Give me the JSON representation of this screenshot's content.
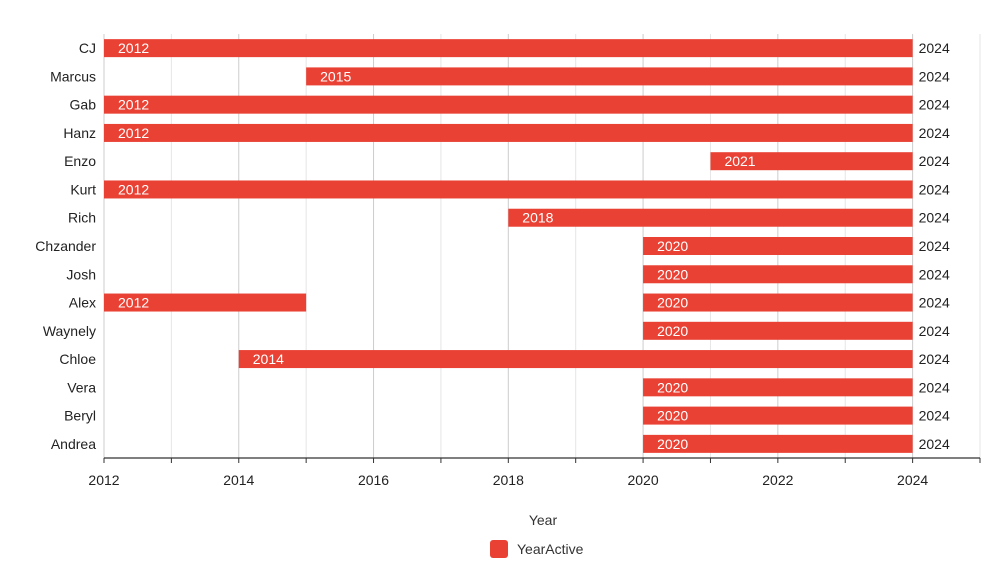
{
  "chart_data": {
    "type": "bar",
    "orientation": "horizontal-range",
    "title": "",
    "xlabel": "Year",
    "ylabel": "",
    "xlim": [
      2012,
      2025
    ],
    "x_ticks": [
      "2012",
      "2014",
      "2016",
      "2018",
      "2020",
      "2022",
      "2024"
    ],
    "grid": true,
    "legend": {
      "position": "bottom",
      "entries": [
        "YearActive"
      ]
    },
    "colors": {
      "bar": "#e94235",
      "axis": "#333333",
      "grid": "#e6e6e6",
      "grid_major": "#cccccc"
    },
    "series": [
      {
        "name": "YearActive",
        "rows": [
          {
            "category": "CJ",
            "segments": [
              {
                "start": 2012,
                "end": 2024,
                "start_label": "2012",
                "end_label": "2024"
              }
            ]
          },
          {
            "category": "Marcus",
            "segments": [
              {
                "start": 2015,
                "end": 2024,
                "start_label": "2015",
                "end_label": "2024"
              }
            ]
          },
          {
            "category": "Gab",
            "segments": [
              {
                "start": 2012,
                "end": 2024,
                "start_label": "2012",
                "end_label": "2024"
              }
            ]
          },
          {
            "category": "Hanz",
            "segments": [
              {
                "start": 2012,
                "end": 2024,
                "start_label": "2012",
                "end_label": "2024"
              }
            ]
          },
          {
            "category": "Enzo",
            "segments": [
              {
                "start": 2021,
                "end": 2024,
                "start_label": "2021",
                "end_label": "2024"
              }
            ]
          },
          {
            "category": "Kurt",
            "segments": [
              {
                "start": 2012,
                "end": 2024,
                "start_label": "2012",
                "end_label": "2024"
              }
            ]
          },
          {
            "category": "Rich",
            "segments": [
              {
                "start": 2018,
                "end": 2024,
                "start_label": "2018",
                "end_label": "2024"
              }
            ]
          },
          {
            "category": "Chzander",
            "segments": [
              {
                "start": 2020,
                "end": 2024,
                "start_label": "2020",
                "end_label": "2024"
              }
            ]
          },
          {
            "category": "Josh",
            "segments": [
              {
                "start": 2020,
                "end": 2024,
                "start_label": "2020",
                "end_label": "2024"
              }
            ]
          },
          {
            "category": "Alex",
            "segments": [
              {
                "start": 2012,
                "end": 2015,
                "start_label": "2012",
                "end_label": ""
              },
              {
                "start": 2020,
                "end": 2024,
                "start_label": "2020",
                "end_label": "2024"
              }
            ]
          },
          {
            "category": "Waynely",
            "segments": [
              {
                "start": 2020,
                "end": 2024,
                "start_label": "2020",
                "end_label": "2024"
              }
            ]
          },
          {
            "category": "Chloe",
            "segments": [
              {
                "start": 2014,
                "end": 2024,
                "start_label": "2014",
                "end_label": "2024"
              }
            ]
          },
          {
            "category": "Vera",
            "segments": [
              {
                "start": 2020,
                "end": 2024,
                "start_label": "2020",
                "end_label": "2024"
              }
            ]
          },
          {
            "category": "Beryl",
            "segments": [
              {
                "start": 2020,
                "end": 2024,
                "start_label": "2020",
                "end_label": "2024"
              }
            ]
          },
          {
            "category": "Andrea",
            "segments": [
              {
                "start": 2020,
                "end": 2024,
                "start_label": "2020",
                "end_label": "2024"
              }
            ]
          }
        ]
      }
    ]
  }
}
